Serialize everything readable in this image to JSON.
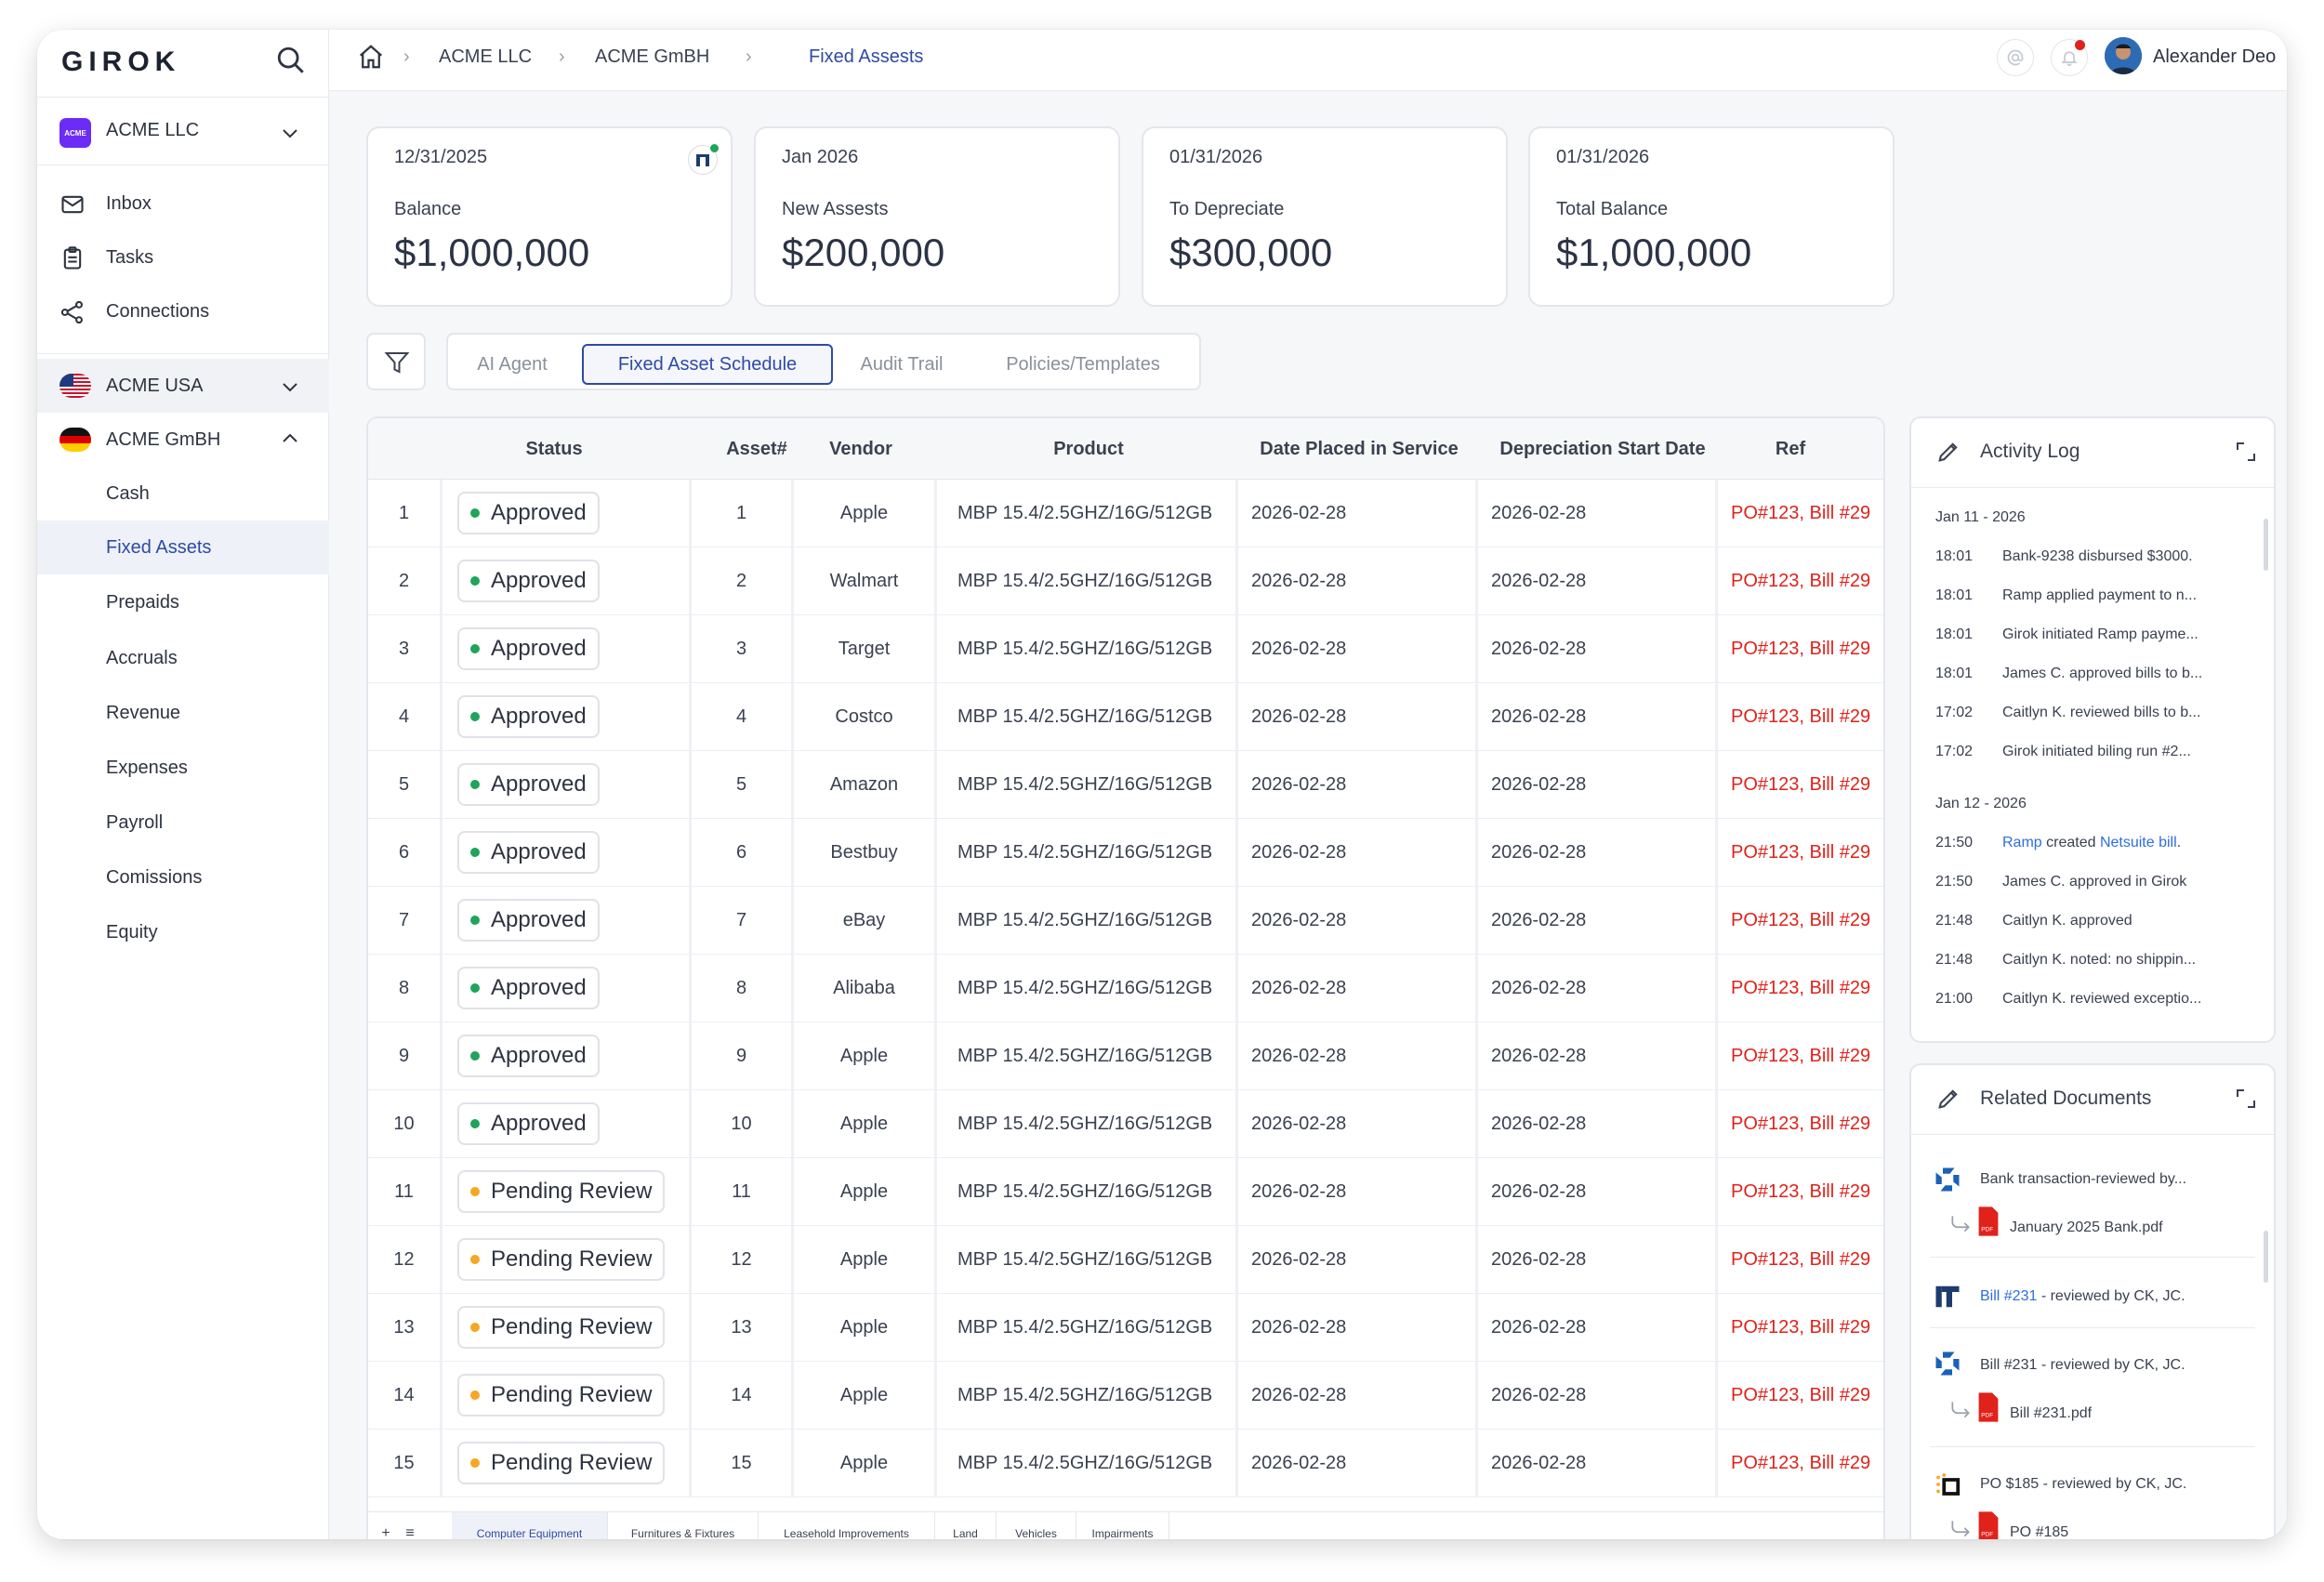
{
  "app": {
    "logo": "GIROK"
  },
  "sidebar": {
    "org": {
      "badge": "ACME",
      "name": "ACME LLC"
    },
    "nav": [
      {
        "label": "Inbox",
        "icon": "mail-icon"
      },
      {
        "label": "Tasks",
        "icon": "clipboard-icon"
      },
      {
        "label": "Connections",
        "icon": "share-icon"
      }
    ],
    "entities": [
      {
        "label": "ACME USA",
        "icon": "us-flag-icon",
        "expanded": false
      },
      {
        "label": "ACME GmBH",
        "icon": "de-flag-icon",
        "expanded": true
      }
    ],
    "sub_items": [
      {
        "label": "Cash",
        "active": false
      },
      {
        "label": "Fixed Assets",
        "active": true
      },
      {
        "label": "Prepaids",
        "active": false
      },
      {
        "label": "Accruals",
        "active": false
      },
      {
        "label": "Revenue",
        "active": false
      },
      {
        "label": "Expenses",
        "active": false
      },
      {
        "label": "Payroll",
        "active": false
      },
      {
        "label": "Comissions",
        "active": false
      },
      {
        "label": "Equity",
        "active": false
      }
    ]
  },
  "header": {
    "breadcrumb": [
      "ACME LLC",
      "ACME GmBH",
      "Fixed Assests"
    ],
    "user": "Alexander Deo"
  },
  "cards": [
    {
      "date": "12/31/2025",
      "label": "Balance",
      "value": "$1,000,000"
    },
    {
      "date": "Jan 2026",
      "label": "New Assests",
      "value": "$200,000"
    },
    {
      "date": "01/31/2026",
      "label": "To Depreciate",
      "value": "$300,000"
    },
    {
      "date": "01/31/2026",
      "label": "Total Balance",
      "value": "$1,000,000"
    }
  ],
  "tabs": [
    {
      "label": "AI Agent",
      "active": false
    },
    {
      "label": "Fixed Asset Schedule",
      "active": true
    },
    {
      "label": "Audit Trail",
      "active": false
    },
    {
      "label": "Policies/Templates",
      "active": false
    }
  ],
  "table": {
    "headers": [
      "Status",
      "Asset#",
      "Vendor",
      "Product",
      "Date Placed in Service",
      "Depreciation Start Date",
      "Ref"
    ],
    "rows": [
      {
        "n": "1",
        "status": "Approved",
        "asset": "1",
        "vendor": "Apple",
        "product": "MBP 15.4/2.5GHZ/16G/512GB",
        "placed": "2026-02-28",
        "dep": "2026-02-28",
        "ref": "PO#123, Bill #29"
      },
      {
        "n": "2",
        "status": "Approved",
        "asset": "2",
        "vendor": "Walmart",
        "product": "MBP 15.4/2.5GHZ/16G/512GB",
        "placed": "2026-02-28",
        "dep": "2026-02-28",
        "ref": "PO#123, Bill #29"
      },
      {
        "n": "3",
        "status": "Approved",
        "asset": "3",
        "vendor": "Target",
        "product": "MBP 15.4/2.5GHZ/16G/512GB",
        "placed": "2026-02-28",
        "dep": "2026-02-28",
        "ref": "PO#123, Bill #29"
      },
      {
        "n": "4",
        "status": "Approved",
        "asset": "4",
        "vendor": "Costco",
        "product": "MBP 15.4/2.5GHZ/16G/512GB",
        "placed": "2026-02-28",
        "dep": "2026-02-28",
        "ref": "PO#123, Bill #29"
      },
      {
        "n": "5",
        "status": "Approved",
        "asset": "5",
        "vendor": "Amazon",
        "product": "MBP 15.4/2.5GHZ/16G/512GB",
        "placed": "2026-02-28",
        "dep": "2026-02-28",
        "ref": "PO#123, Bill #29"
      },
      {
        "n": "6",
        "status": "Approved",
        "asset": "6",
        "vendor": "Bestbuy",
        "product": "MBP 15.4/2.5GHZ/16G/512GB",
        "placed": "2026-02-28",
        "dep": "2026-02-28",
        "ref": "PO#123, Bill #29"
      },
      {
        "n": "7",
        "status": "Approved",
        "asset": "7",
        "vendor": "eBay",
        "product": "MBP 15.4/2.5GHZ/16G/512GB",
        "placed": "2026-02-28",
        "dep": "2026-02-28",
        "ref": "PO#123, Bill #29"
      },
      {
        "n": "8",
        "status": "Approved",
        "asset": "8",
        "vendor": "Alibaba",
        "product": "MBP 15.4/2.5GHZ/16G/512GB",
        "placed": "2026-02-28",
        "dep": "2026-02-28",
        "ref": "PO#123, Bill #29"
      },
      {
        "n": "9",
        "status": "Approved",
        "asset": "9",
        "vendor": "Apple",
        "product": "MBP 15.4/2.5GHZ/16G/512GB",
        "placed": "2026-02-28",
        "dep": "2026-02-28",
        "ref": "PO#123, Bill #29"
      },
      {
        "n": "10",
        "status": "Approved",
        "asset": "10",
        "vendor": "Apple",
        "product": "MBP 15.4/2.5GHZ/16G/512GB",
        "placed": "2026-02-28",
        "dep": "2026-02-28",
        "ref": "PO#123, Bill #29"
      },
      {
        "n": "11",
        "status": "Pending Review",
        "asset": "11",
        "vendor": "Apple",
        "product": "MBP 15.4/2.5GHZ/16G/512GB",
        "placed": "2026-02-28",
        "dep": "2026-02-28",
        "ref": "PO#123, Bill #29"
      },
      {
        "n": "12",
        "status": "Pending Review",
        "asset": "12",
        "vendor": "Apple",
        "product": "MBP 15.4/2.5GHZ/16G/512GB",
        "placed": "2026-02-28",
        "dep": "2026-02-28",
        "ref": "PO#123, Bill #29"
      },
      {
        "n": "13",
        "status": "Pending Review",
        "asset": "13",
        "vendor": "Apple",
        "product": "MBP 15.4/2.5GHZ/16G/512GB",
        "placed": "2026-02-28",
        "dep": "2026-02-28",
        "ref": "PO#123, Bill #29"
      },
      {
        "n": "14",
        "status": "Pending Review",
        "asset": "14",
        "vendor": "Apple",
        "product": "MBP 15.4/2.5GHZ/16G/512GB",
        "placed": "2026-02-28",
        "dep": "2026-02-28",
        "ref": "PO#123, Bill #29"
      },
      {
        "n": "15",
        "status": "Pending Review",
        "asset": "15",
        "vendor": "Apple",
        "product": "MBP 15.4/2.5GHZ/16G/512GB",
        "placed": "2026-02-28",
        "dep": "2026-02-28",
        "ref": "PO#123, Bill #29"
      }
    ],
    "sheets": [
      {
        "label": "Computer Equipment",
        "active": true
      },
      {
        "label": "Furnitures & Fixtures",
        "active": false
      },
      {
        "label": "Leasehold Improvements",
        "active": false
      },
      {
        "label": "Land",
        "active": false
      },
      {
        "label": "Vehicles",
        "active": false
      },
      {
        "label": "Impairments",
        "active": false
      }
    ],
    "add_sheet": "+",
    "sheet_menu": "≡"
  },
  "colors": {
    "approved": "#1fa55b",
    "pending": "#f5a623",
    "accent": "#2e4aa5",
    "ref": "#e0221b"
  },
  "activity_log": {
    "title": "Activity Log",
    "days": [
      {
        "date": "Jan 11 - 2026",
        "entries": [
          {
            "time": "18:01",
            "text": "Bank-9238 disbursed $3000."
          },
          {
            "time": "18:01",
            "text": "Ramp applied payment to n..."
          },
          {
            "time": "18:01",
            "text": "Girok initiated Ramp payme..."
          },
          {
            "time": "18:01",
            "text": "James C. approved bills to b..."
          },
          {
            "time": "17:02",
            "text": "Caitlyn K. reviewed bills to b..."
          },
          {
            "time": "17:02",
            "text": "Girok initiated biling run #2..."
          }
        ]
      },
      {
        "date": "Jan 12 - 2026",
        "entries": [
          {
            "time": "21:50",
            "pre": "Ramp",
            "mid": " created ",
            "link": "Netsuite bill",
            "post": "."
          },
          {
            "time": "21:50",
            "text": "James C. approved in Girok"
          },
          {
            "time": "21:48",
            "text": "Caitlyn K. approved"
          },
          {
            "time": "21:48",
            "text": "Caitlyn K. noted: no shippin..."
          },
          {
            "time": "21:00",
            "text": "Caitlyn K. reviewed exceptio..."
          }
        ]
      }
    ]
  },
  "related_docs": {
    "title": "Related Documents",
    "items": [
      {
        "icon": "chase-icon",
        "text": "Bank transaction-reviewed by...",
        "file": "January 2025 Bank.pdf"
      },
      {
        "icon": "netsuite-icon",
        "link": "Bill #231",
        "text": " - reviewed by CK, JC."
      },
      {
        "icon": "chase-icon",
        "text": "Bill #231 - reviewed by CK, JC.",
        "file": "Bill #231.pdf"
      },
      {
        "icon": "ramp-icon",
        "text": "PO $185 - reviewed by CK, JC.",
        "file": "PO #185"
      }
    ]
  }
}
